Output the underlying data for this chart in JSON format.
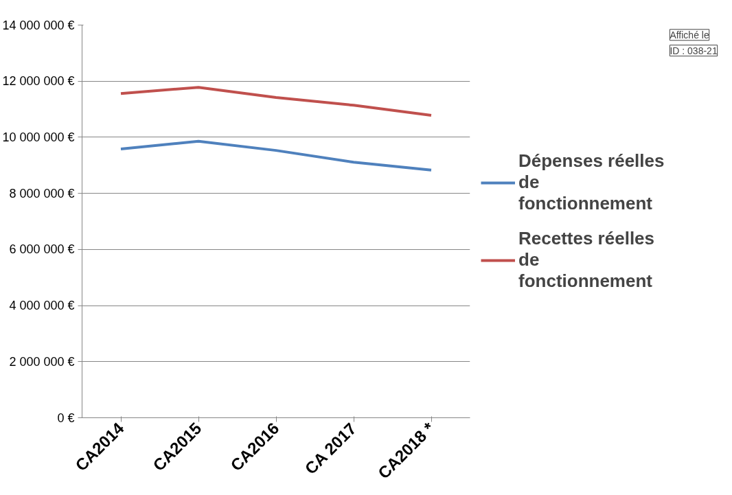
{
  "chart_data": {
    "type": "line",
    "categories": [
      "CA2014",
      "CA2015",
      "CA2016",
      "CA 2017",
      "CA2018 *"
    ],
    "series": [
      {
        "name": "Dépenses réelles de fonctionnement",
        "color": "#4f81bd",
        "values": [
          9580000,
          9860000,
          9530000,
          9110000,
          8830000
        ]
      },
      {
        "name": "Recettes réelles de fonctionnement",
        "color": "#c0504d",
        "values": [
          11560000,
          11780000,
          11420000,
          11140000,
          10780000
        ]
      }
    ],
    "ylim": [
      0,
      14000000
    ],
    "yticks": [
      {
        "value": 0,
        "label": "0 €"
      },
      {
        "value": 2000000,
        "label": "2 000 000 €"
      },
      {
        "value": 4000000,
        "label": "4 000 000 €"
      },
      {
        "value": 6000000,
        "label": "6 000 000 €"
      },
      {
        "value": 8000000,
        "label": "8 000 000 €"
      },
      {
        "value": 10000000,
        "label": "10 000 000 €"
      },
      {
        "value": 12000000,
        "label": "12 000 000 €"
      },
      {
        "value": 14000000,
        "label": "14 000 000 €"
      }
    ],
    "grid": "y",
    "legend": "right",
    "marker": "none",
    "line_style": "solid",
    "annotations": [
      "Affiché le",
      "ID : 038-21"
    ]
  }
}
